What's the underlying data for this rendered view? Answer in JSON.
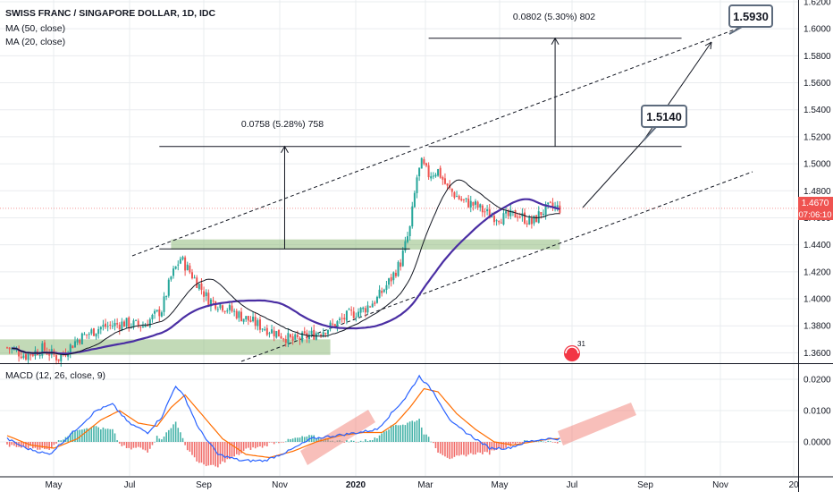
{
  "colors": {
    "up": "#26a69a",
    "down": "#ef5350",
    "ma50": "#4a2ea3",
    "ma20": "#131722",
    "macd": "#2962ff",
    "signal": "#ff6d00",
    "zone": "#8fbc7b",
    "highlight": "#f28b82",
    "grid": "#e9ecef",
    "priceLine": "#ef5350"
  },
  "header": {
    "title": "SWISS FRANC / SINGAPORE DOLLAR, 1D, IDC",
    "ma50_label": "MA (50, close)",
    "ma20_label": "MA (20, close)",
    "macd_label": "MACD (12, 26, close, 9)"
  },
  "annotations": {
    "measure1": "0.0758 (5.28%) 758",
    "measure2": "0.0802 (5.30%) 802",
    "target1": "1.5140",
    "target2": "1.5930",
    "current_price": "1.4670",
    "countdown": "07:06:10",
    "event_badge": "31"
  },
  "chart_data": [
    {
      "type": "candlestick",
      "title": "SWISS FRANC / SINGAPORE DOLLAR, 1D, IDC",
      "x_ticks": [
        "May",
        "Jul",
        "Sep",
        "Nov",
        "2020",
        "Mar",
        "May",
        "Jul",
        "Sep",
        "Nov",
        "20"
      ],
      "y_ticks": [
        "1.6200",
        "1.6000",
        "1.5800",
        "1.5600",
        "1.5400",
        "1.5200",
        "1.5000",
        "1.4800",
        "1.4600",
        "1.4400",
        "1.4200",
        "1.4000",
        "1.3800",
        "1.3600"
      ],
      "ylim": [
        1.353,
        1.62
      ],
      "series": [
        {
          "name": "MA (50, close)",
          "type": "line"
        },
        {
          "name": "MA (20, close)",
          "type": "line"
        }
      ],
      "price_anchors": [
        {
          "t": 0,
          "p": 1.364
        },
        {
          "t": 8,
          "p": 1.358
        },
        {
          "t": 15,
          "p": 1.363
        },
        {
          "t": 22,
          "p": 1.356
        },
        {
          "t": 30,
          "p": 1.37
        },
        {
          "t": 40,
          "p": 1.379
        },
        {
          "t": 50,
          "p": 1.382
        },
        {
          "t": 58,
          "p": 1.38
        },
        {
          "t": 66,
          "p": 1.392
        },
        {
          "t": 70,
          "p": 1.416
        },
        {
          "t": 74,
          "p": 1.43
        },
        {
          "t": 78,
          "p": 1.42
        },
        {
          "t": 82,
          "p": 1.41
        },
        {
          "t": 86,
          "p": 1.399
        },
        {
          "t": 92,
          "p": 1.395
        },
        {
          "t": 100,
          "p": 1.387
        },
        {
          "t": 108,
          "p": 1.38
        },
        {
          "t": 116,
          "p": 1.374
        },
        {
          "t": 122,
          "p": 1.369
        },
        {
          "t": 128,
          "p": 1.372
        },
        {
          "t": 134,
          "p": 1.376
        },
        {
          "t": 140,
          "p": 1.381
        },
        {
          "t": 146,
          "p": 1.388
        },
        {
          "t": 152,
          "p": 1.392
        },
        {
          "t": 158,
          "p": 1.4
        },
        {
          "t": 164,
          "p": 1.415
        },
        {
          "t": 168,
          "p": 1.427
        },
        {
          "t": 172,
          "p": 1.452
        },
        {
          "t": 175,
          "p": 1.49
        },
        {
          "t": 177,
          "p": 1.5
        },
        {
          "t": 180,
          "p": 1.492
        },
        {
          "t": 184,
          "p": 1.495
        },
        {
          "t": 188,
          "p": 1.482
        },
        {
          "t": 194,
          "p": 1.473
        },
        {
          "t": 200,
          "p": 1.469
        },
        {
          "t": 206,
          "p": 1.462
        },
        {
          "t": 212,
          "p": 1.46
        },
        {
          "t": 218,
          "p": 1.463
        },
        {
          "t": 224,
          "p": 1.456
        },
        {
          "t": 228,
          "p": 1.464
        },
        {
          "t": 232,
          "p": 1.468
        },
        {
          "t": 236,
          "p": 1.467
        }
      ],
      "zones": [
        {
          "t0": 0,
          "t1": 138,
          "p0": 1.3585,
          "p1": 1.37
        },
        {
          "t0": 70,
          "t1": 236,
          "p0": 1.4365,
          "p1": 1.444
        }
      ],
      "measurements": [
        {
          "t0": 65,
          "t1": 172,
          "p0": 1.437,
          "p1": 1.5128,
          "label": "0.0758 (5.28%) 758"
        },
        {
          "t0": 180,
          "t1": 288,
          "p0": 1.5128,
          "p1": 1.593,
          "label": "0.0802 (5.30%) 802"
        }
      ]
    },
    {
      "type": "line",
      "title": "MACD (12, 26, close, 9)",
      "y_ticks": [
        "0.0200",
        "0.0100",
        "0.0000"
      ],
      "ylim": [
        -0.012,
        0.024
      ],
      "series": [
        {
          "name": "MACD",
          "anchors": [
            {
              "t": 0,
              "v": 0.001
            },
            {
              "t": 8,
              "v": -0.002
            },
            {
              "t": 18,
              "v": -0.004
            },
            {
              "t": 28,
              "v": 0.003
            },
            {
              "t": 38,
              "v": 0.01
            },
            {
              "t": 45,
              "v": 0.012
            },
            {
              "t": 52,
              "v": 0.006
            },
            {
              "t": 60,
              "v": 0.003
            },
            {
              "t": 66,
              "v": 0.008
            },
            {
              "t": 72,
              "v": 0.018
            },
            {
              "t": 76,
              "v": 0.014
            },
            {
              "t": 82,
              "v": 0.004
            },
            {
              "t": 90,
              "v": -0.004
            },
            {
              "t": 100,
              "v": -0.006
            },
            {
              "t": 110,
              "v": -0.006
            },
            {
              "t": 120,
              "v": -0.003
            },
            {
              "t": 130,
              "v": 0.001
            },
            {
              "t": 140,
              "v": 0.002
            },
            {
              "t": 150,
              "v": 0.003
            },
            {
              "t": 158,
              "v": 0.004
            },
            {
              "t": 164,
              "v": 0.009
            },
            {
              "t": 170,
              "v": 0.014
            },
            {
              "t": 176,
              "v": 0.021
            },
            {
              "t": 182,
              "v": 0.016
            },
            {
              "t": 190,
              "v": 0.006
            },
            {
              "t": 198,
              "v": 0.002
            },
            {
              "t": 206,
              "v": -0.002
            },
            {
              "t": 214,
              "v": -0.002
            },
            {
              "t": 222,
              "v": 0.0
            },
            {
              "t": 230,
              "v": 0.001
            },
            {
              "t": 236,
              "v": 0.001
            }
          ]
        },
        {
          "name": "Signal",
          "anchors": [
            {
              "t": 0,
              "v": 0.002
            },
            {
              "t": 10,
              "v": -0.001
            },
            {
              "t": 20,
              "v": -0.002
            },
            {
              "t": 30,
              "v": 0.001
            },
            {
              "t": 40,
              "v": 0.007
            },
            {
              "t": 48,
              "v": 0.01
            },
            {
              "t": 56,
              "v": 0.006
            },
            {
              "t": 64,
              "v": 0.005
            },
            {
              "t": 70,
              "v": 0.011
            },
            {
              "t": 76,
              "v": 0.015
            },
            {
              "t": 84,
              "v": 0.008
            },
            {
              "t": 92,
              "v": 0.001
            },
            {
              "t": 102,
              "v": -0.004
            },
            {
              "t": 112,
              "v": -0.005
            },
            {
              "t": 122,
              "v": -0.003
            },
            {
              "t": 132,
              "v": 0.0
            },
            {
              "t": 142,
              "v": 0.002
            },
            {
              "t": 152,
              "v": 0.003
            },
            {
              "t": 160,
              "v": 0.003
            },
            {
              "t": 166,
              "v": 0.006
            },
            {
              "t": 172,
              "v": 0.011
            },
            {
              "t": 178,
              "v": 0.017
            },
            {
              "t": 184,
              "v": 0.016
            },
            {
              "t": 192,
              "v": 0.009
            },
            {
              "t": 200,
              "v": 0.004
            },
            {
              "t": 208,
              "v": 0.0
            },
            {
              "t": 216,
              "v": -0.001
            },
            {
              "t": 224,
              "v": 0.0
            },
            {
              "t": 232,
              "v": 0.001
            },
            {
              "t": 236,
              "v": 0.001
            }
          ]
        }
      ]
    }
  ]
}
